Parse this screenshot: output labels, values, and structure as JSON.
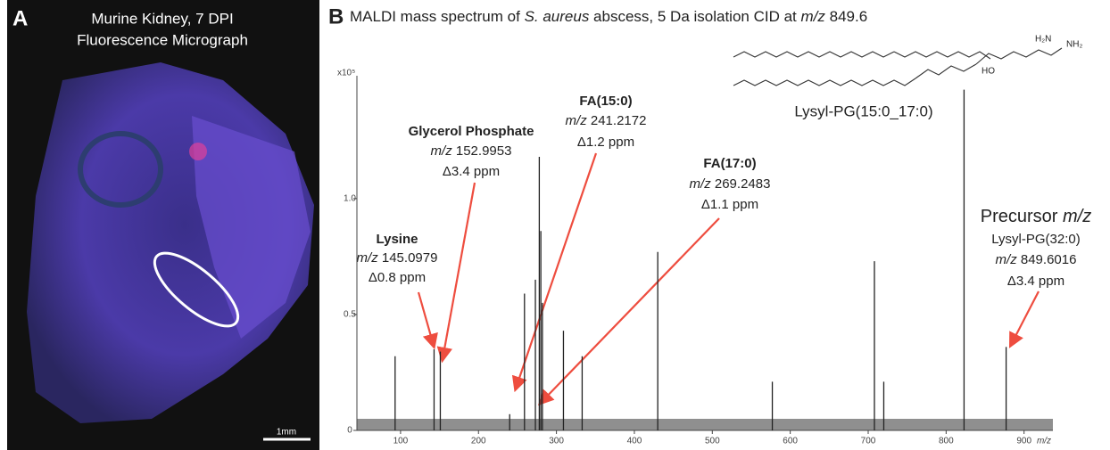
{
  "panel_a": {
    "letter": "A",
    "title_lines": [
      "Murine Kidney, 7 DPI",
      "Fluorescence Micrograph"
    ],
    "scale_bar": "1mm"
  },
  "structure": {
    "label": "Lysyl-PG(15:0_17:0)",
    "atoms": [
      "H₂N",
      "NH₂",
      "HO"
    ]
  },
  "annotations": [
    {
      "name": "Lysine",
      "mz_label": "m/z",
      "mz": "145.0979",
      "delta": "Δ0.8 ppm"
    },
    {
      "name": "Glycerol Phosphate",
      "mz_label": "m/z",
      "mz": "152.9953",
      "delta": "Δ3.4 ppm"
    },
    {
      "name": "FA(15:0)",
      "mz_label": "m/z",
      "mz": "241.2172",
      "delta": "Δ1.2 ppm"
    },
    {
      "name": "FA(17:0)",
      "mz_label": "m/z",
      "mz": "269.2483",
      "delta": "Δ1.1 ppm"
    }
  ],
  "precursor": {
    "title_parts": [
      "Precursor",
      "m/z"
    ],
    "name": "Lysyl-PG(32:0)",
    "mz_label": "m/z",
    "mz": "849.6016",
    "delta": "Δ3.4 ppm"
  },
  "chart_data": {
    "type": "stick",
    "letter": "B",
    "title_parts": [
      "MALDI mass spectrum of ",
      "S. aureus",
      " abscess, 5 Da isolation CID at ",
      "m/z",
      " 849.6"
    ],
    "xlabel": "m/z",
    "ylabel": "x10⁵",
    "x": [
      93,
      143,
      151,
      240,
      259,
      273,
      278,
      280,
      282,
      309,
      333,
      430,
      577,
      708,
      720,
      823,
      877
    ],
    "values": [
      0.32,
      0.35,
      0.34,
      0.07,
      0.59,
      0.65,
      1.18,
      0.86,
      0.55,
      0.43,
      0.32,
      0.77,
      0.21,
      0.73,
      0.21,
      1.47,
      0.36
    ],
    "color": "#222222",
    "xlim": [
      44,
      937
    ],
    "xticks": [
      100,
      200,
      300,
      400,
      500,
      600,
      700,
      800,
      900
    ],
    "ylim": [
      0,
      1.53
    ],
    "yticks": [
      0,
      0.5,
      {
        "value": 1,
        "label": "1.0"
      }
    ]
  }
}
